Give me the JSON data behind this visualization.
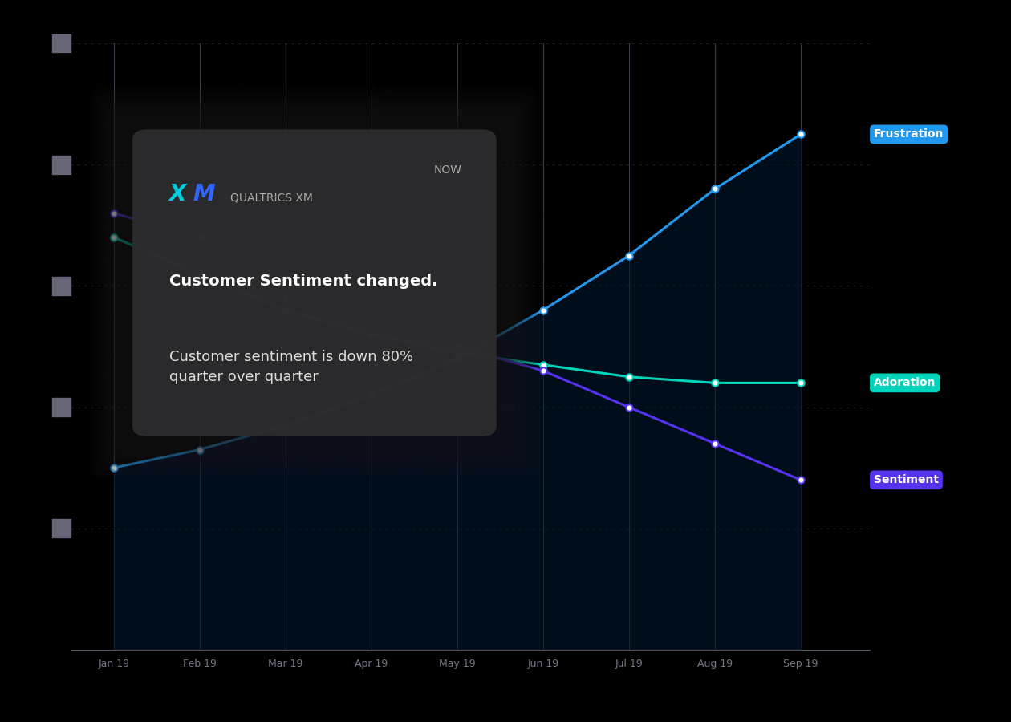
{
  "background_color": "#000000",
  "plot_bg_color": "#000000",
  "grid_color": "#4a4a5a",
  "x_labels": [
    "Jan 19",
    "Feb 19",
    "Mar 19",
    "Apr 19",
    "May 19",
    "Jun 19",
    "Jul 19",
    "Aug 19",
    "Sep 19"
  ],
  "x_values": [
    0,
    1,
    2,
    3,
    4,
    5,
    6,
    7,
    8
  ],
  "frustration": [
    30,
    33,
    37,
    42,
    48,
    56,
    65,
    76,
    85
  ],
  "adoration": [
    68,
    62,
    56,
    52,
    49,
    47,
    45,
    44,
    44
  ],
  "sentiment": [
    72,
    68,
    58,
    52,
    50,
    46,
    40,
    34,
    28
  ],
  "frustration_color": "#2299ee",
  "adoration_color": "#00d4bb",
  "sentiment_color": "#5533ee",
  "frustration_label_bg": "#2299ee",
  "adoration_label_bg": "#00d4bb",
  "sentiment_label_bg": "#5533ee",
  "ylim": [
    0,
    100
  ],
  "ytick_positions": [
    20,
    40,
    60,
    80,
    100
  ],
  "popup_title_bold": "Customer Sentiment changed.",
  "popup_body": "Customer sentiment is down 80%\nquarter over quarter",
  "popup_header": "QUALTRICS XM",
  "popup_time": "NOW",
  "popup_bg": "#2c2c2e",
  "line_width": 2.2,
  "marker_size": 6
}
